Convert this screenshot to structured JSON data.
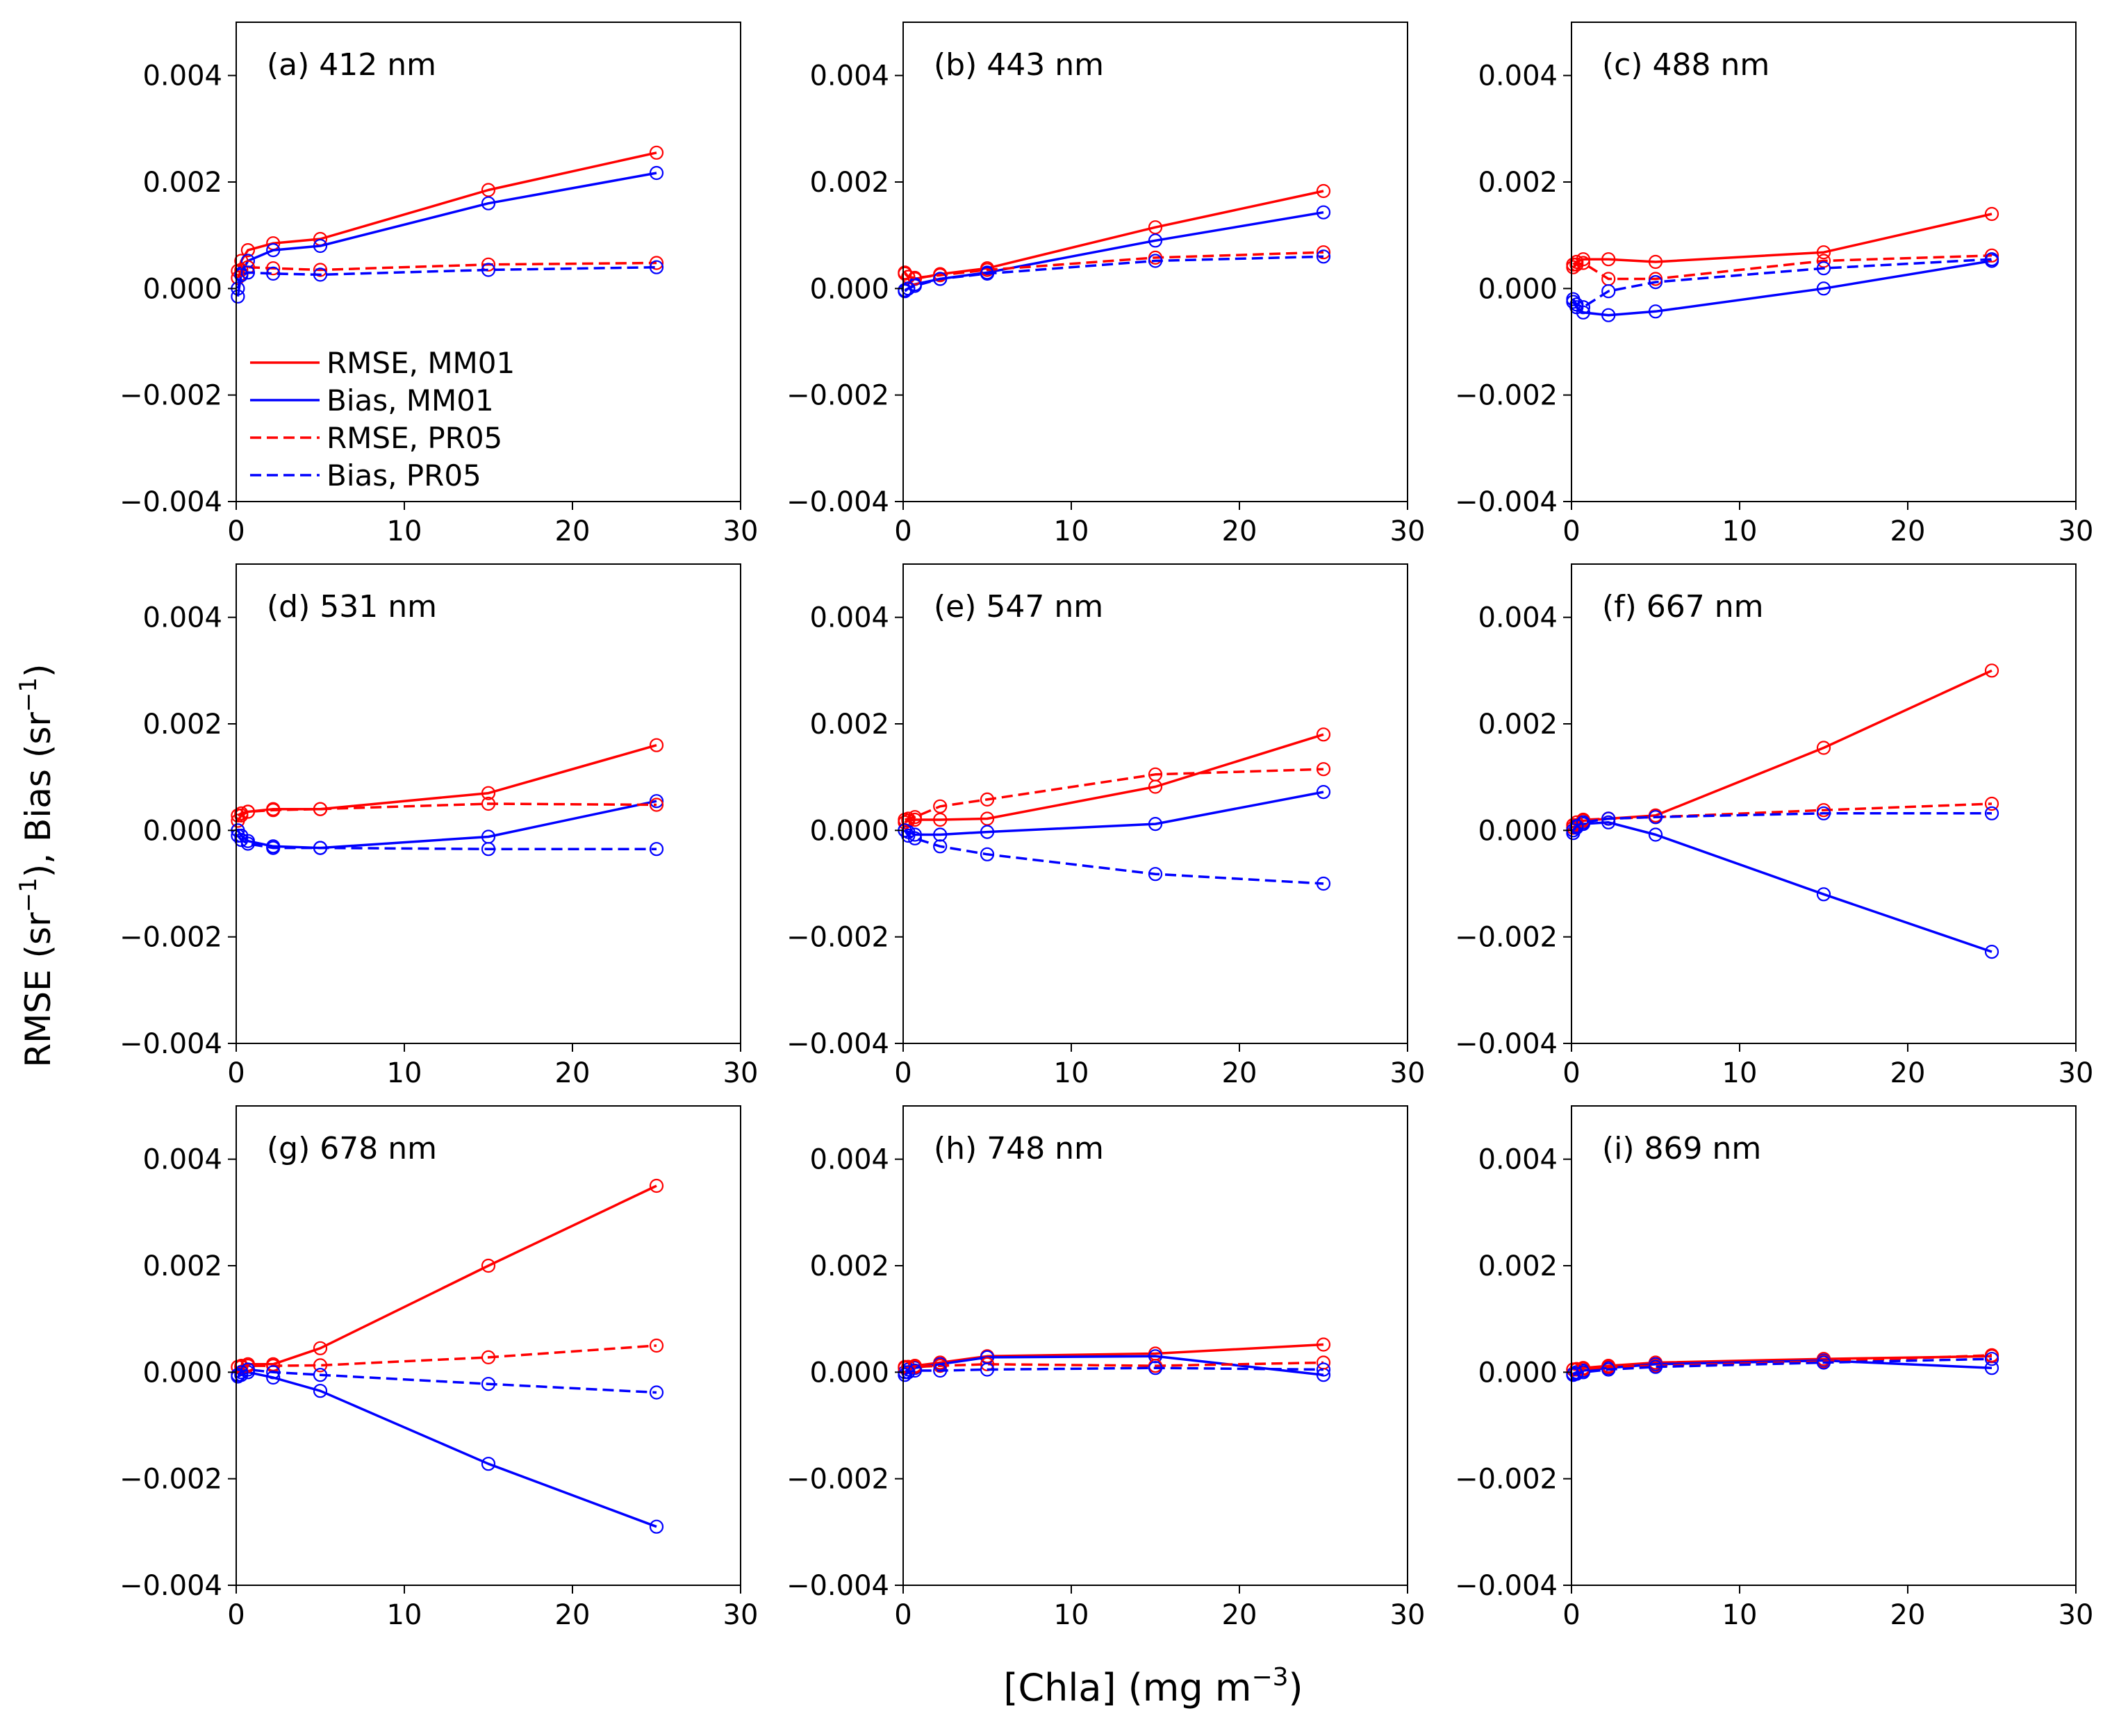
{
  "figure": {
    "ylabel_main": "RMSE (sr",
    "ylabel_sup1": "−1",
    "ylabel_mid": "), Bias (sr",
    "ylabel_sup2": "−1",
    "ylabel_end": ")",
    "xlabel_main": "[Chla] (mg m",
    "xlabel_sup": "−3",
    "xlabel_end": ")"
  },
  "legend": {
    "placement": "center-left of panel (a)",
    "entries": [
      {
        "label": "RMSE, MM01",
        "color": "#ff0000",
        "dash": "solid"
      },
      {
        "label": "Bias, MM01",
        "color": "#0000ff",
        "dash": "solid"
      },
      {
        "label": "RMSE, PR05",
        "color": "#ff0000",
        "dash": "dashed"
      },
      {
        "label": "Bias, PR05",
        "color": "#0000ff",
        "dash": "dashed"
      }
    ]
  },
  "chart_data": [
    {
      "type": "line",
      "title": "(a) 412 nm",
      "xlim": [
        0,
        30
      ],
      "ylim": [
        -0.004,
        0.005
      ],
      "xticks": [
        0,
        10,
        20,
        30
      ],
      "yticks": [
        -0.004,
        -0.002,
        0.0,
        0.002,
        0.004
      ],
      "x": [
        0.1,
        0.3,
        0.7,
        2.2,
        5,
        15,
        25
      ],
      "series": [
        {
          "name": "RMSE, MM01",
          "color": "#ff0000",
          "dash": "solid",
          "values": [
            0.00033,
            0.00052,
            0.00072,
            0.00085,
            0.00093,
            0.00185,
            0.00255
          ]
        },
        {
          "name": "Bias, MM01",
          "color": "#0000ff",
          "dash": "solid",
          "values": [
            -0.00015,
            0.00028,
            0.00052,
            0.00072,
            0.0008,
            0.0016,
            0.00217
          ]
        },
        {
          "name": "RMSE, PR05",
          "color": "#ff0000",
          "dash": "dashed",
          "values": [
            0.0002,
            0.00035,
            0.0004,
            0.00038,
            0.00035,
            0.00045,
            0.00048
          ]
        },
        {
          "name": "Bias, PR05",
          "color": "#0000ff",
          "dash": "dashed",
          "values": [
            0.0,
            0.00025,
            0.0003,
            0.00028,
            0.00026,
            0.00035,
            0.0004
          ]
        }
      ]
    },
    {
      "type": "line",
      "title": "(b) 443 nm",
      "xlim": [
        0,
        30
      ],
      "ylim": [
        -0.004,
        0.005
      ],
      "xticks": [
        0,
        10,
        20,
        30
      ],
      "yticks": [
        -0.004,
        -0.002,
        0.0,
        0.002,
        0.004
      ],
      "x": [
        0.1,
        0.3,
        0.7,
        2.2,
        5,
        15,
        25
      ],
      "series": [
        {
          "name": "RMSE, MM01",
          "color": "#ff0000",
          "dash": "solid",
          "values": [
            0.0003,
            0.00022,
            0.00018,
            0.00027,
            0.00038,
            0.00115,
            0.00183
          ]
        },
        {
          "name": "Bias, MM01",
          "color": "#0000ff",
          "dash": "solid",
          "values": [
            -3e-05,
            0.0,
            8e-05,
            0.00018,
            0.0003,
            0.0009,
            0.00143
          ]
        },
        {
          "name": "RMSE, PR05",
          "color": "#ff0000",
          "dash": "dashed",
          "values": [
            0.00028,
            0.00022,
            0.0002,
            0.00025,
            0.00035,
            0.00058,
            0.00068
          ]
        },
        {
          "name": "Bias, PR05",
          "color": "#0000ff",
          "dash": "dashed",
          "values": [
            -5e-05,
            0.0,
            5e-05,
            0.00018,
            0.00028,
            0.00052,
            0.0006
          ]
        }
      ]
    },
    {
      "type": "line",
      "title": "(c) 488 nm",
      "xlim": [
        0,
        30
      ],
      "ylim": [
        -0.004,
        0.005
      ],
      "xticks": [
        0,
        10,
        20,
        30
      ],
      "yticks": [
        -0.004,
        -0.002,
        0.0,
        0.002,
        0.004
      ],
      "x": [
        0.1,
        0.3,
        0.7,
        2.2,
        5,
        15,
        25
      ],
      "series": [
        {
          "name": "RMSE, MM01",
          "color": "#ff0000",
          "dash": "solid",
          "values": [
            0.00045,
            0.0005,
            0.00055,
            0.00055,
            0.0005,
            0.00068,
            0.0014
          ]
        },
        {
          "name": "Bias, MM01",
          "color": "#0000ff",
          "dash": "solid",
          "values": [
            -0.00025,
            -0.00035,
            -0.00045,
            -0.0005,
            -0.00043,
            0.0,
            0.00052
          ]
        },
        {
          "name": "RMSE, PR05",
          "color": "#ff0000",
          "dash": "dashed",
          "values": [
            0.0004,
            0.00045,
            0.00048,
            0.00018,
            0.00018,
            0.00052,
            0.00062
          ]
        },
        {
          "name": "Bias, PR05",
          "color": "#0000ff",
          "dash": "dashed",
          "values": [
            -0.0002,
            -0.0003,
            -0.00035,
            -5e-05,
            0.00012,
            0.00038,
            0.00055
          ]
        }
      ]
    },
    {
      "type": "line",
      "title": "(d) 531 nm",
      "xlim": [
        0,
        30
      ],
      "ylim": [
        -0.004,
        0.005
      ],
      "xticks": [
        0,
        10,
        20,
        30
      ],
      "yticks": [
        -0.004,
        -0.002,
        0.0,
        0.002,
        0.004
      ],
      "x": [
        0.1,
        0.3,
        0.7,
        2.2,
        5,
        15,
        25
      ],
      "series": [
        {
          "name": "RMSE, MM01",
          "color": "#ff0000",
          "dash": "solid",
          "values": [
            0.00018,
            0.00028,
            0.00035,
            0.0004,
            0.0004,
            0.0007,
            0.0016
          ]
        },
        {
          "name": "Bias, MM01",
          "color": "#0000ff",
          "dash": "solid",
          "values": [
            0.0,
            -0.0001,
            -0.0002,
            -0.0003,
            -0.00033,
            -0.00012,
            0.00055
          ]
        },
        {
          "name": "RMSE, PR05",
          "color": "#ff0000",
          "dash": "dashed",
          "values": [
            0.00028,
            0.00032,
            0.00035,
            0.00038,
            0.0004,
            0.0005,
            0.00048
          ]
        },
        {
          "name": "Bias, PR05",
          "color": "#0000ff",
          "dash": "dashed",
          "values": [
            -0.0001,
            -0.00018,
            -0.00025,
            -0.00033,
            -0.00033,
            -0.00035,
            -0.00035
          ]
        }
      ]
    },
    {
      "type": "line",
      "title": "(e) 547 nm",
      "xlim": [
        0,
        30
      ],
      "ylim": [
        -0.004,
        0.005
      ],
      "xticks": [
        0,
        10,
        20,
        30
      ],
      "yticks": [
        -0.004,
        -0.002,
        0.0,
        0.002,
        0.004
      ],
      "x": [
        0.1,
        0.3,
        0.7,
        2.2,
        5,
        15,
        25
      ],
      "series": [
        {
          "name": "RMSE, MM01",
          "color": "#ff0000",
          "dash": "solid",
          "values": [
            0.00015,
            0.00018,
            0.0002,
            0.0002,
            0.00022,
            0.00082,
            0.0018
          ]
        },
        {
          "name": "Bias, MM01",
          "color": "#0000ff",
          "dash": "solid",
          "values": [
            0.0,
            -3e-05,
            -8e-05,
            -8e-05,
            -3e-05,
            0.00012,
            0.00072
          ]
        },
        {
          "name": "RMSE, PR05",
          "color": "#ff0000",
          "dash": "dashed",
          "values": [
            0.0002,
            0.00022,
            0.00025,
            0.00045,
            0.00058,
            0.00105,
            0.00115
          ]
        },
        {
          "name": "Bias, PR05",
          "color": "#0000ff",
          "dash": "dashed",
          "values": [
            0.0,
            -0.0001,
            -0.00015,
            -0.0003,
            -0.00045,
            -0.00082,
            -0.001
          ]
        }
      ]
    },
    {
      "type": "line",
      "title": "(f) 667 nm",
      "xlim": [
        0,
        30
      ],
      "ylim": [
        -0.004,
        0.005
      ],
      "xticks": [
        0,
        10,
        20,
        30
      ],
      "yticks": [
        -0.004,
        -0.002,
        0.0,
        0.002,
        0.004
      ],
      "x": [
        0.1,
        0.3,
        0.7,
        2.2,
        5,
        15,
        25
      ],
      "series": [
        {
          "name": "RMSE, MM01",
          "color": "#ff0000",
          "dash": "solid",
          "values": [
            5e-05,
            0.0001,
            0.00018,
            0.00022,
            0.00028,
            0.00155,
            0.003
          ]
        },
        {
          "name": "Bias, MM01",
          "color": "#0000ff",
          "dash": "solid",
          "values": [
            -5e-05,
            5e-05,
            0.00012,
            0.00015,
            -8e-05,
            -0.0012,
            -0.00228
          ]
        },
        {
          "name": "RMSE, PR05",
          "color": "#ff0000",
          "dash": "dashed",
          "values": [
            0.0001,
            0.00015,
            0.0002,
            0.00022,
            0.00025,
            0.00038,
            0.0005
          ]
        },
        {
          "name": "Bias, PR05",
          "color": "#0000ff",
          "dash": "dashed",
          "values": [
            0.0,
            8e-05,
            0.00015,
            0.00022,
            0.00025,
            0.00032,
            0.00032
          ]
        }
      ]
    },
    {
      "type": "line",
      "title": "(g) 678 nm",
      "xlim": [
        0,
        30
      ],
      "ylim": [
        -0.004,
        0.005
      ],
      "xticks": [
        0,
        10,
        20,
        30
      ],
      "yticks": [
        -0.004,
        -0.002,
        0.0,
        0.002,
        0.004
      ],
      "x": [
        0.1,
        0.3,
        0.7,
        2.2,
        5,
        15,
        25
      ],
      "series": [
        {
          "name": "RMSE, MM01",
          "color": "#ff0000",
          "dash": "solid",
          "values": [
            0.0001,
            0.00012,
            0.00015,
            0.00015,
            0.00045,
            0.002,
            0.0035
          ]
        },
        {
          "name": "Bias, MM01",
          "color": "#0000ff",
          "dash": "solid",
          "values": [
            -8e-05,
            -5e-05,
            0.0,
            -0.0001,
            -0.00035,
            -0.00172,
            -0.0029
          ]
        },
        {
          "name": "RMSE, PR05",
          "color": "#ff0000",
          "dash": "dashed",
          "values": [
            0.0001,
            0.0001,
            0.00012,
            0.00012,
            0.00013,
            0.00028,
            0.0005
          ]
        },
        {
          "name": "Bias, PR05",
          "color": "#0000ff",
          "dash": "dashed",
          "values": [
            -5e-05,
            0.0,
            5e-05,
            0.0,
            -5e-05,
            -0.00022,
            -0.00038
          ]
        }
      ]
    },
    {
      "type": "line",
      "title": "(h) 748 nm",
      "xlim": [
        0,
        30
      ],
      "ylim": [
        -0.004,
        0.005
      ],
      "xticks": [
        0,
        10,
        20,
        30
      ],
      "yticks": [
        -0.004,
        -0.002,
        0.0,
        0.002,
        0.004
      ],
      "x": [
        0.1,
        0.3,
        0.7,
        2.2,
        5,
        15,
        25
      ],
      "series": [
        {
          "name": "RMSE, MM01",
          "color": "#ff0000",
          "dash": "solid",
          "values": [
            0.0001,
            0.0001,
            0.00012,
            0.00018,
            0.0003,
            0.00035,
            0.00052
          ]
        },
        {
          "name": "Bias, MM01",
          "color": "#0000ff",
          "dash": "solid",
          "values": [
            0.0,
            5e-05,
            8e-05,
            0.00015,
            0.00028,
            0.0003,
            -5e-05
          ]
        },
        {
          "name": "RMSE, PR05",
          "color": "#ff0000",
          "dash": "dashed",
          "values": [
            8e-05,
            0.0001,
            0.0001,
            0.00012,
            0.00015,
            0.00012,
            0.00018
          ]
        },
        {
          "name": "Bias, PR05",
          "color": "#0000ff",
          "dash": "dashed",
          "values": [
            -5e-05,
            0.0,
            3e-05,
            3e-05,
            5e-05,
            8e-05,
            5e-05
          ]
        }
      ]
    },
    {
      "type": "line",
      "title": "(i) 869 nm",
      "xlim": [
        0,
        30
      ],
      "ylim": [
        -0.004,
        0.005
      ],
      "xticks": [
        0,
        10,
        20,
        30
      ],
      "yticks": [
        -0.004,
        -0.002,
        0.0,
        0.002,
        0.004
      ],
      "x": [
        0.1,
        0.3,
        0.7,
        2.2,
        5,
        15,
        25
      ],
      "series": [
        {
          "name": "RMSE, MM01",
          "color": "#ff0000",
          "dash": "solid",
          "values": [
            5e-05,
            6e-05,
            8e-05,
            0.00012,
            0.00018,
            0.00025,
            0.0003
          ]
        },
        {
          "name": "Bias, MM01",
          "color": "#0000ff",
          "dash": "solid",
          "values": [
            -3e-05,
            0.0,
            3e-05,
            8e-05,
            0.00015,
            0.00022,
            8e-05
          ]
        },
        {
          "name": "RMSE, PR05",
          "color": "#ff0000",
          "dash": "dashed",
          "values": [
            5e-05,
            5e-05,
            6e-05,
            0.0001,
            0.00012,
            0.0002,
            0.00032
          ]
        },
        {
          "name": "Bias, PR05",
          "color": "#0000ff",
          "dash": "dashed",
          "values": [
            -5e-05,
            -3e-05,
            0.0,
            5e-05,
            0.0001,
            0.00018,
            0.00025
          ]
        }
      ]
    }
  ]
}
